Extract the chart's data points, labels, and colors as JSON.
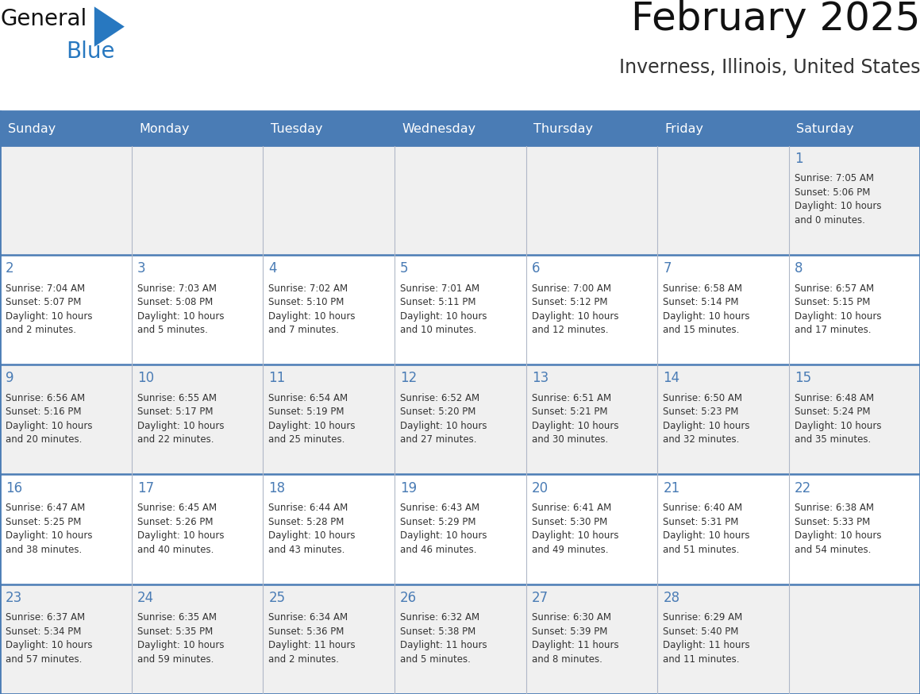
{
  "title": "February 2025",
  "subtitle": "Inverness, Illinois, United States",
  "days_of_week": [
    "Sunday",
    "Monday",
    "Tuesday",
    "Wednesday",
    "Thursday",
    "Friday",
    "Saturday"
  ],
  "header_color": "#4a7cb5",
  "header_text_color": "#ffffff",
  "cell_bg_color": "#ffffff",
  "cell_alt_color": "#f0f0f0",
  "row_line_color": "#4a7cb5",
  "col_line_color": "#b0b8c8",
  "day_num_color": "#4a7cb5",
  "text_color": "#333333",
  "logo_general_color": "#111111",
  "logo_blue_color": "#2878c0",
  "logo_triangle_color": "#2878c0",
  "weeks": [
    [
      {
        "day": null,
        "info": null
      },
      {
        "day": null,
        "info": null
      },
      {
        "day": null,
        "info": null
      },
      {
        "day": null,
        "info": null
      },
      {
        "day": null,
        "info": null
      },
      {
        "day": null,
        "info": null
      },
      {
        "day": 1,
        "info": "Sunrise: 7:05 AM\nSunset: 5:06 PM\nDaylight: 10 hours\nand 0 minutes."
      }
    ],
    [
      {
        "day": 2,
        "info": "Sunrise: 7:04 AM\nSunset: 5:07 PM\nDaylight: 10 hours\nand 2 minutes."
      },
      {
        "day": 3,
        "info": "Sunrise: 7:03 AM\nSunset: 5:08 PM\nDaylight: 10 hours\nand 5 minutes."
      },
      {
        "day": 4,
        "info": "Sunrise: 7:02 AM\nSunset: 5:10 PM\nDaylight: 10 hours\nand 7 minutes."
      },
      {
        "day": 5,
        "info": "Sunrise: 7:01 AM\nSunset: 5:11 PM\nDaylight: 10 hours\nand 10 minutes."
      },
      {
        "day": 6,
        "info": "Sunrise: 7:00 AM\nSunset: 5:12 PM\nDaylight: 10 hours\nand 12 minutes."
      },
      {
        "day": 7,
        "info": "Sunrise: 6:58 AM\nSunset: 5:14 PM\nDaylight: 10 hours\nand 15 minutes."
      },
      {
        "day": 8,
        "info": "Sunrise: 6:57 AM\nSunset: 5:15 PM\nDaylight: 10 hours\nand 17 minutes."
      }
    ],
    [
      {
        "day": 9,
        "info": "Sunrise: 6:56 AM\nSunset: 5:16 PM\nDaylight: 10 hours\nand 20 minutes."
      },
      {
        "day": 10,
        "info": "Sunrise: 6:55 AM\nSunset: 5:17 PM\nDaylight: 10 hours\nand 22 minutes."
      },
      {
        "day": 11,
        "info": "Sunrise: 6:54 AM\nSunset: 5:19 PM\nDaylight: 10 hours\nand 25 minutes."
      },
      {
        "day": 12,
        "info": "Sunrise: 6:52 AM\nSunset: 5:20 PM\nDaylight: 10 hours\nand 27 minutes."
      },
      {
        "day": 13,
        "info": "Sunrise: 6:51 AM\nSunset: 5:21 PM\nDaylight: 10 hours\nand 30 minutes."
      },
      {
        "day": 14,
        "info": "Sunrise: 6:50 AM\nSunset: 5:23 PM\nDaylight: 10 hours\nand 32 minutes."
      },
      {
        "day": 15,
        "info": "Sunrise: 6:48 AM\nSunset: 5:24 PM\nDaylight: 10 hours\nand 35 minutes."
      }
    ],
    [
      {
        "day": 16,
        "info": "Sunrise: 6:47 AM\nSunset: 5:25 PM\nDaylight: 10 hours\nand 38 minutes."
      },
      {
        "day": 17,
        "info": "Sunrise: 6:45 AM\nSunset: 5:26 PM\nDaylight: 10 hours\nand 40 minutes."
      },
      {
        "day": 18,
        "info": "Sunrise: 6:44 AM\nSunset: 5:28 PM\nDaylight: 10 hours\nand 43 minutes."
      },
      {
        "day": 19,
        "info": "Sunrise: 6:43 AM\nSunset: 5:29 PM\nDaylight: 10 hours\nand 46 minutes."
      },
      {
        "day": 20,
        "info": "Sunrise: 6:41 AM\nSunset: 5:30 PM\nDaylight: 10 hours\nand 49 minutes."
      },
      {
        "day": 21,
        "info": "Sunrise: 6:40 AM\nSunset: 5:31 PM\nDaylight: 10 hours\nand 51 minutes."
      },
      {
        "day": 22,
        "info": "Sunrise: 6:38 AM\nSunset: 5:33 PM\nDaylight: 10 hours\nand 54 minutes."
      }
    ],
    [
      {
        "day": 23,
        "info": "Sunrise: 6:37 AM\nSunset: 5:34 PM\nDaylight: 10 hours\nand 57 minutes."
      },
      {
        "day": 24,
        "info": "Sunrise: 6:35 AM\nSunset: 5:35 PM\nDaylight: 10 hours\nand 59 minutes."
      },
      {
        "day": 25,
        "info": "Sunrise: 6:34 AM\nSunset: 5:36 PM\nDaylight: 11 hours\nand 2 minutes."
      },
      {
        "day": 26,
        "info": "Sunrise: 6:32 AM\nSunset: 5:38 PM\nDaylight: 11 hours\nand 5 minutes."
      },
      {
        "day": 27,
        "info": "Sunrise: 6:30 AM\nSunset: 5:39 PM\nDaylight: 11 hours\nand 8 minutes."
      },
      {
        "day": 28,
        "info": "Sunrise: 6:29 AM\nSunset: 5:40 PM\nDaylight: 11 hours\nand 11 minutes."
      },
      {
        "day": null,
        "info": null
      }
    ]
  ]
}
